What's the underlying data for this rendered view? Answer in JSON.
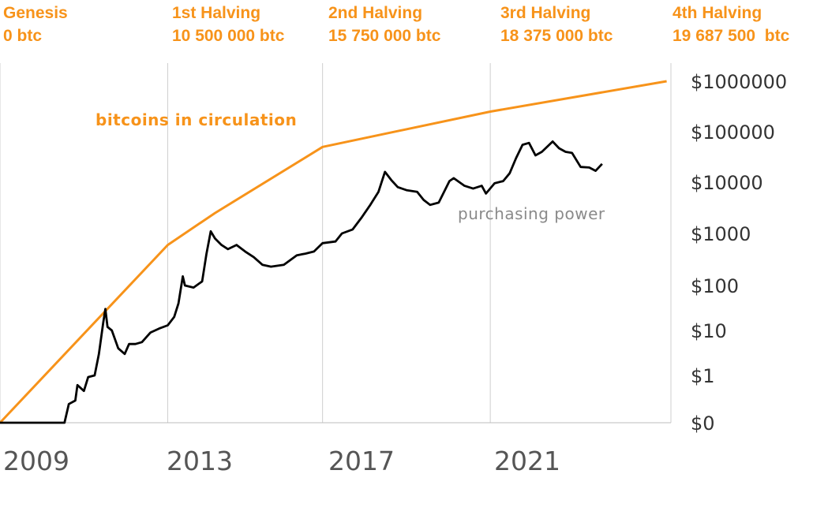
{
  "halvings": [
    {
      "name": "Genesis",
      "supply": "0 btc"
    },
    {
      "name": "1st Halving",
      "supply": "10 500 000 btc"
    },
    {
      "name": "2nd Halving",
      "supply": "15 750 000 btc"
    },
    {
      "name": "3rd Halving",
      "supply": "18 375 000 btc"
    },
    {
      "name": "4th Halving",
      "supply": "19 687 500  btc"
    }
  ],
  "chart_data": {
    "type": "line",
    "title": "",
    "xlabel": "",
    "ylabel": "",
    "x_ticks": [
      "2009",
      "2013",
      "2017",
      "2021"
    ],
    "y_ticks": [
      "$0",
      "$1",
      "$10",
      "$100",
      "$1000",
      "$10000",
      "$100000",
      "$1000000"
    ],
    "y_scale": "log",
    "xlim": [
      2009.0,
      2024.6
    ],
    "grid": "vertical lines at halving dates",
    "colors": {
      "supply": "#f7931a",
      "price": "#000000",
      "grid": "#cfcfcf"
    },
    "series": [
      {
        "name": "bitcoins in circulation",
        "points": [
          [
            2009.0,
            0
          ],
          [
            2012.9,
            600
          ],
          [
            2014.0,
            2500
          ],
          [
            2016.5,
            50000
          ],
          [
            2020.4,
            250000
          ],
          [
            2024.5,
            1000000
          ]
        ]
      },
      {
        "name": "purchasing power",
        "points": [
          [
            2009.0,
            0
          ],
          [
            2010.5,
            0
          ],
          [
            2010.6,
            0.06
          ],
          [
            2010.75,
            0.1
          ],
          [
            2010.8,
            0.5
          ],
          [
            2010.95,
            0.3
          ],
          [
            2011.05,
            0.9
          ],
          [
            2011.2,
            1.0
          ],
          [
            2011.3,
            3
          ],
          [
            2011.4,
            15
          ],
          [
            2011.45,
            30
          ],
          [
            2011.5,
            12
          ],
          [
            2011.6,
            10
          ],
          [
            2011.75,
            4
          ],
          [
            2011.9,
            3
          ],
          [
            2012.0,
            5
          ],
          [
            2012.15,
            5
          ],
          [
            2012.3,
            5.5
          ],
          [
            2012.5,
            9
          ],
          [
            2012.7,
            11
          ],
          [
            2012.9,
            13
          ],
          [
            2013.05,
            20
          ],
          [
            2013.15,
            40
          ],
          [
            2013.25,
            150
          ],
          [
            2013.3,
            100
          ],
          [
            2013.5,
            90
          ],
          [
            2013.7,
            120
          ],
          [
            2013.8,
            400
          ],
          [
            2013.9,
            1100
          ],
          [
            2014.0,
            800
          ],
          [
            2014.15,
            600
          ],
          [
            2014.3,
            500
          ],
          [
            2014.5,
            600
          ],
          [
            2014.7,
            450
          ],
          [
            2014.9,
            350
          ],
          [
            2015.1,
            250
          ],
          [
            2015.3,
            230
          ],
          [
            2015.6,
            250
          ],
          [
            2015.9,
            380
          ],
          [
            2016.1,
            410
          ],
          [
            2016.3,
            450
          ],
          [
            2016.5,
            650
          ],
          [
            2016.8,
            700
          ],
          [
            2016.95,
            1000
          ],
          [
            2017.2,
            1200
          ],
          [
            2017.4,
            2000
          ],
          [
            2017.6,
            3500
          ],
          [
            2017.8,
            6500
          ],
          [
            2017.95,
            16000
          ],
          [
            2018.1,
            11000
          ],
          [
            2018.25,
            8000
          ],
          [
            2018.45,
            7000
          ],
          [
            2018.7,
            6500
          ],
          [
            2018.85,
            4500
          ],
          [
            2019.0,
            3600
          ],
          [
            2019.2,
            4000
          ],
          [
            2019.45,
            10500
          ],
          [
            2019.55,
            12000
          ],
          [
            2019.8,
            8500
          ],
          [
            2020.0,
            7500
          ],
          [
            2020.2,
            8500
          ],
          [
            2020.3,
            6000
          ],
          [
            2020.5,
            9500
          ],
          [
            2020.7,
            10500
          ],
          [
            2020.85,
            15000
          ],
          [
            2021.0,
            30000
          ],
          [
            2021.15,
            55000
          ],
          [
            2021.3,
            60000
          ],
          [
            2021.45,
            34000
          ],
          [
            2021.6,
            40000
          ],
          [
            2021.85,
            64000
          ],
          [
            2022.0,
            47000
          ],
          [
            2022.15,
            40000
          ],
          [
            2022.3,
            38000
          ],
          [
            2022.5,
            20000
          ],
          [
            2022.7,
            19500
          ],
          [
            2022.85,
            16800
          ],
          [
            2023.0,
            23000
          ]
        ]
      }
    ],
    "annotations": [
      "bitcoins in circulation",
      "purchasing power"
    ]
  }
}
